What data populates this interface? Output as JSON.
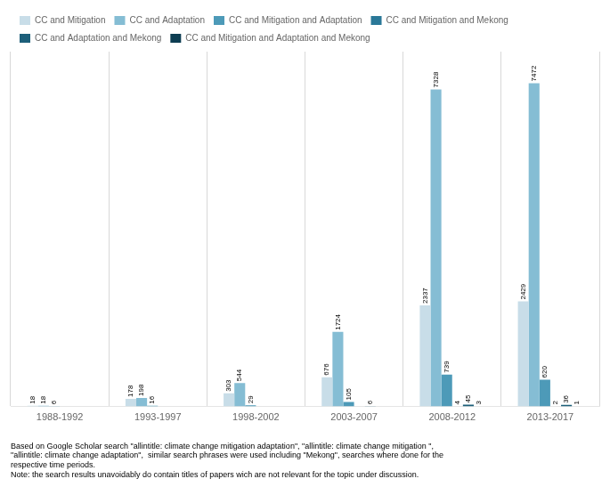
{
  "chart_data": {
    "type": "bar",
    "categories": [
      "1988-1992",
      "1993-1997",
      "1998-2002",
      "2003-2007",
      "2008-2012",
      "2013-2017"
    ],
    "series": [
      {
        "name": "CC and Mitigation",
        "color": "#c8dde8",
        "values": [
          18,
          178,
          303,
          676,
          2337,
          2429
        ]
      },
      {
        "name": "CC and Adaptation",
        "color": "#85bdd4",
        "values": [
          18,
          198,
          544,
          1724,
          7328,
          7472
        ]
      },
      {
        "name": "CC and Mitigation and Adaptation",
        "color": "#4d9ab8",
        "values": [
          6,
          16,
          29,
          105,
          739,
          620
        ]
      },
      {
        "name": "CC and Mitigation and Mekong",
        "color": "#2a7898",
        "values": [
          0,
          0,
          0,
          0,
          4,
          2
        ]
      },
      {
        "name": "CC and Adaptation and Mekong",
        "color": "#1d5f7a",
        "values": [
          0,
          0,
          0,
          6,
          45,
          36
        ]
      },
      {
        "name": "CC and Mitigation and Adaptation and Mekong",
        "color": "#0d3d52",
        "values": [
          0,
          0,
          0,
          0,
          3,
          1
        ]
      }
    ],
    "ylim": [
      0,
      8200
    ],
    "grid": true,
    "legend": "upper left",
    "data_labels": true,
    "tick_labels": "x",
    "annotations": [
      "Based on Google Scholar search \"allintitle: climate change mitigation adaptation\", \"allintitle: climate change mitigation \",",
      "\"allintitle: climate change adaptation\",  similar search phrases were used including \"Mekong\", searches where done for the",
      "respective time periods.",
      "Note: the search results unavoidably do contain titles of papers wich are not relevant for the topic under discussion."
    ]
  }
}
